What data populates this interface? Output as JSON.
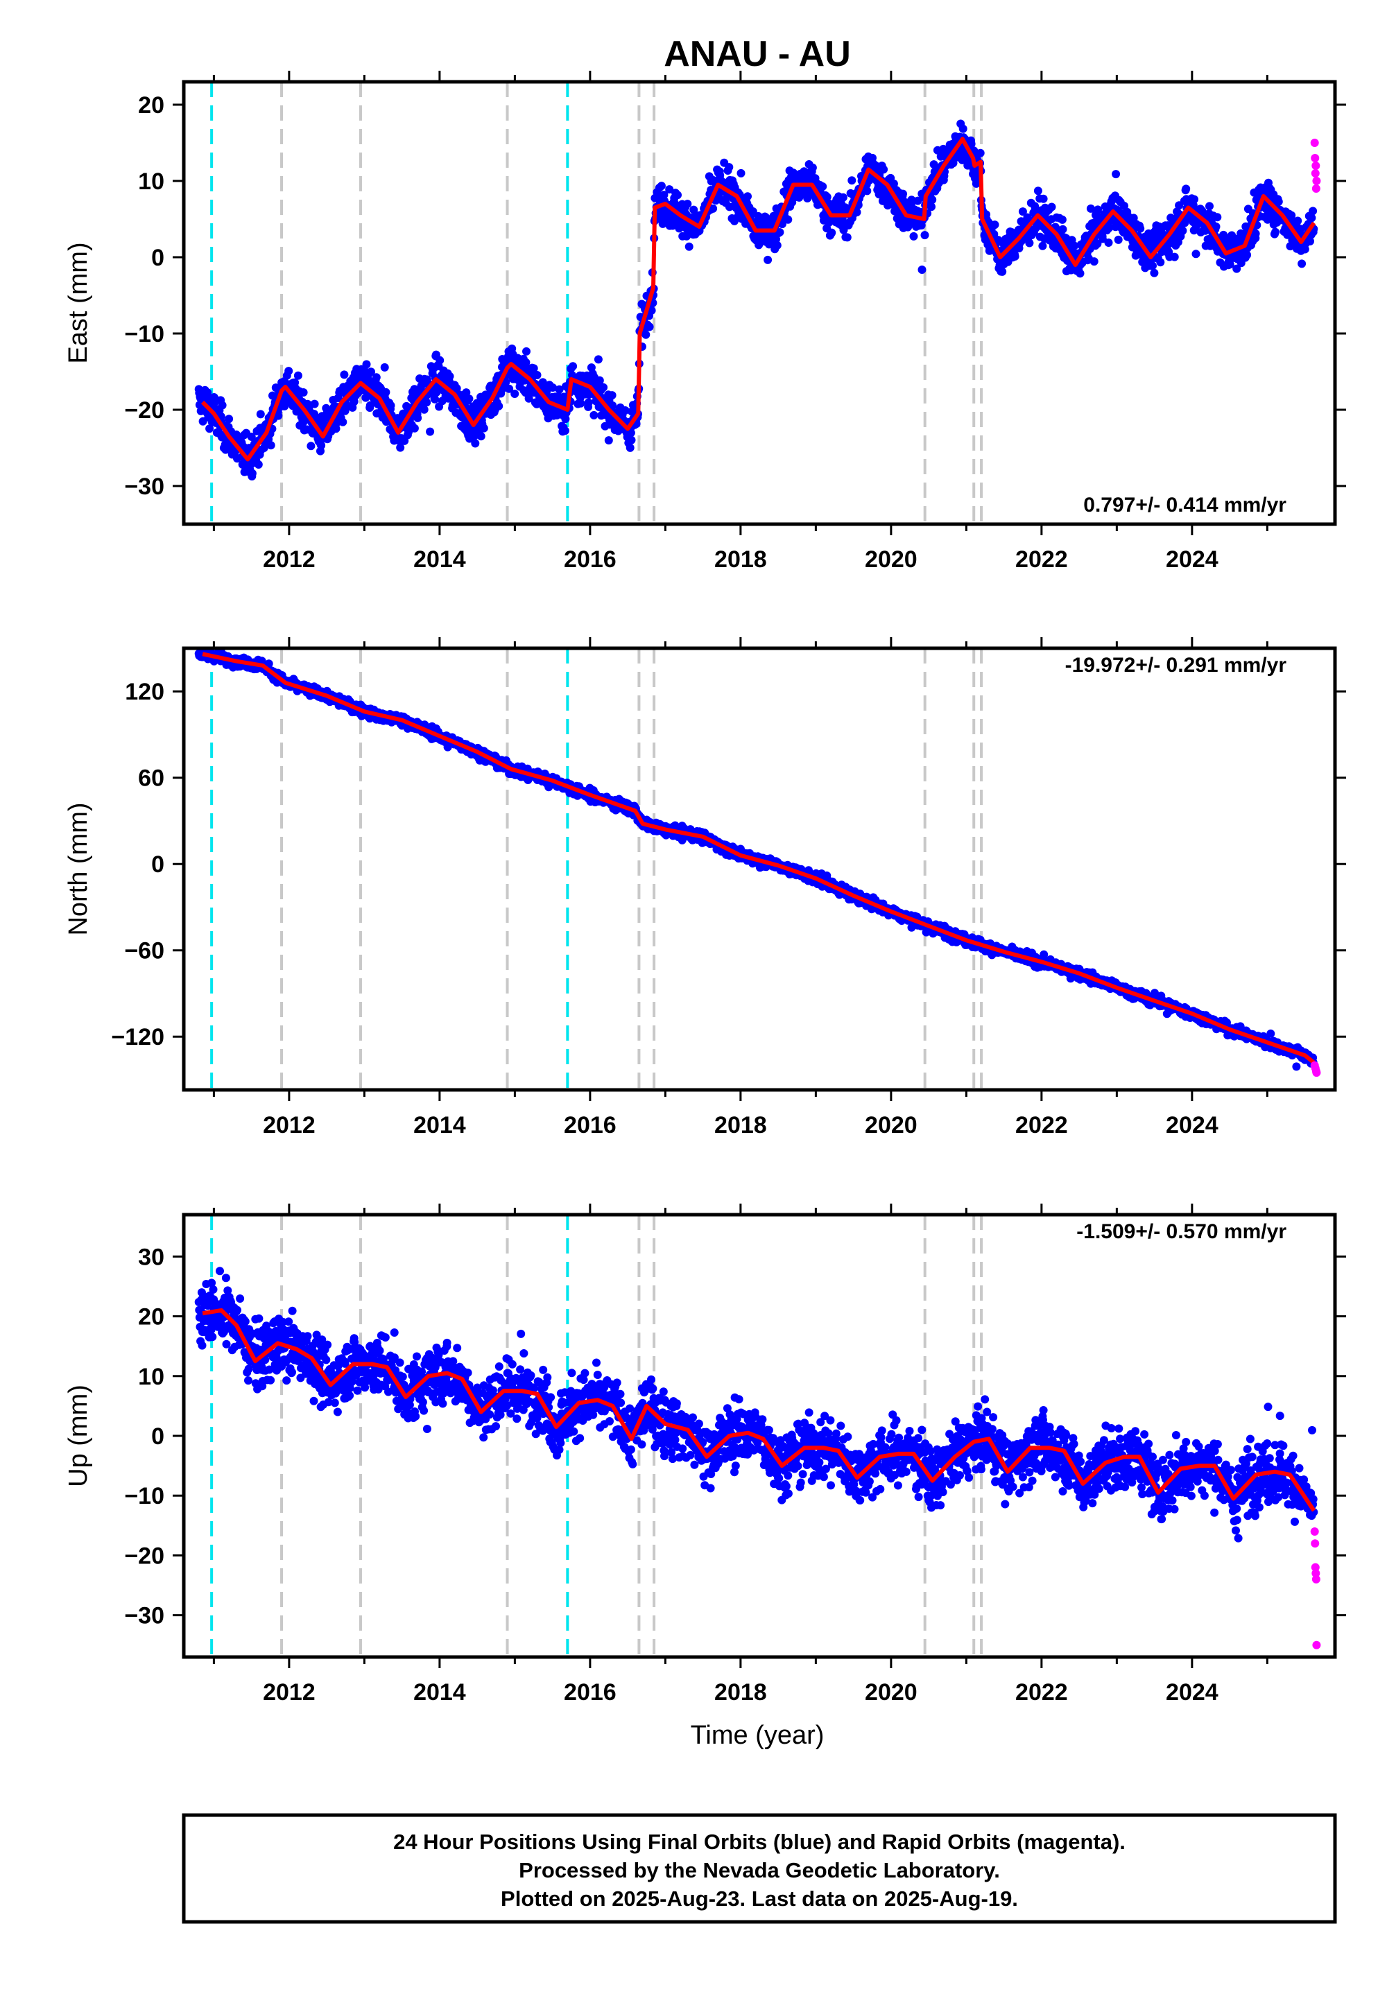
{
  "title": "ANAU - AU",
  "xlabel": "Time (year)",
  "footer": {
    "line1": "24 Hour Positions Using Final Orbits (blue) and Rapid Orbits (magenta).",
    "line2": "Processed by the Nevada Geodetic Laboratory.",
    "line3": "Plotted on 2025-Aug-23. Last data on 2025-Aug-19."
  },
  "colors": {
    "final_orbits": "#0000ff",
    "rapid_orbits": "#ff00ff",
    "model": "#ff0000",
    "offset_equipment": "#c8c8c8",
    "offset_earthquake": "#00e5ee"
  },
  "chart_data": [
    {
      "type": "scatter",
      "id": "east",
      "ylabel": "East (mm)",
      "rate_label": "0.797+/- 0.414 mm/yr",
      "rate_position": "bottom-right",
      "xlim": [
        2010.6,
        2025.9
      ],
      "ylim": [
        -35,
        23
      ],
      "xticks": [
        "2012",
        "2014",
        "2016",
        "2018",
        "2020",
        "2022",
        "2024"
      ],
      "yticks": [
        "20",
        "10",
        "0",
        "−10",
        "−20",
        "−30"
      ],
      "ytick_values": [
        20,
        10,
        0,
        -10,
        -20,
        -30
      ],
      "offsets_equipment": [
        2011.9,
        2012.95,
        2014.9,
        2016.65,
        2016.85,
        2020.45,
        2021.1,
        2021.2
      ],
      "offsets_earthquake": [
        2010.97,
        2015.7
      ],
      "series": [
        {
          "role": "model",
          "x": [
            2010.85,
            2011.0,
            2011.2,
            2011.45,
            2011.7,
            2011.9,
            2011.95,
            2012.2,
            2012.45,
            2012.7,
            2012.95,
            2013.2,
            2013.45,
            2013.7,
            2013.95,
            2014.2,
            2014.45,
            2014.7,
            2014.9,
            2014.95,
            2015.2,
            2015.45,
            2015.7,
            2015.75,
            2016.0,
            2016.25,
            2016.5,
            2016.64,
            2016.66,
            2016.84,
            2016.86,
            2017.0,
            2017.2,
            2017.45,
            2017.7,
            2017.95,
            2018.2,
            2018.45,
            2018.7,
            2018.95,
            2019.2,
            2019.45,
            2019.7,
            2019.95,
            2020.2,
            2020.44,
            2020.46,
            2020.7,
            2020.95,
            2021.09,
            2021.11,
            2021.19,
            2021.21,
            2021.45,
            2021.7,
            2021.95,
            2022.2,
            2022.45,
            2022.7,
            2022.95,
            2023.2,
            2023.45,
            2023.7,
            2023.95,
            2024.2,
            2024.45,
            2024.7,
            2024.95,
            2025.2,
            2025.45,
            2025.62
          ],
          "y": [
            -19,
            -20.5,
            -23.5,
            -26.5,
            -23,
            -17.5,
            -17,
            -20,
            -23.5,
            -19,
            -16.5,
            -18.5,
            -23,
            -19,
            -16,
            -18,
            -22,
            -18.5,
            -14.5,
            -14,
            -16,
            -19,
            -20,
            -16,
            -17,
            -20,
            -22.5,
            -20.5,
            -10,
            -4,
            6.5,
            7,
            5.5,
            4,
            9.5,
            8,
            3.5,
            3.5,
            9.5,
            9.5,
            5.5,
            5.5,
            11.5,
            9.5,
            5.5,
            5,
            8,
            12,
            15.5,
            13,
            12,
            12.5,
            5,
            0,
            2.5,
            5.5,
            3,
            -1,
            3,
            6,
            3.5,
            0,
            3,
            6.5,
            4.5,
            0.5,
            1.5,
            8,
            5.5,
            2,
            4.5
          ]
        },
        {
          "role": "final",
          "label": "Final Orbits",
          "x_range": [
            2010.8,
            2025.62
          ],
          "spread_mm": 1.8
        },
        {
          "role": "rapid",
          "label": "Rapid Orbits",
          "x": [
            2025.63,
            2025.635,
            2025.64,
            2025.645,
            2025.65,
            2025.655
          ],
          "y": [
            15,
            13,
            11,
            12,
            9,
            10
          ]
        }
      ]
    },
    {
      "type": "scatter",
      "id": "north",
      "ylabel": "North (mm)",
      "rate_label": "-19.972+/- 0.291 mm/yr",
      "rate_position": "top-right",
      "xlim": [
        2010.6,
        2025.9
      ],
      "ylim": [
        -157,
        150
      ],
      "xticks": [
        "2012",
        "2014",
        "2016",
        "2018",
        "2020",
        "2022",
        "2024"
      ],
      "yticks": [
        "120",
        "60",
        "0",
        "−60",
        "−120"
      ],
      "ytick_values": [
        120,
        60,
        0,
        -60,
        -120
      ],
      "offsets_equipment": [
        2011.9,
        2012.95,
        2014.9,
        2016.65,
        2016.85,
        2020.45,
        2021.1,
        2021.2
      ],
      "offsets_earthquake": [
        2010.97,
        2015.7
      ],
      "series": [
        {
          "role": "model",
          "x": [
            2010.85,
            2011.3,
            2011.65,
            2011.95,
            2012.5,
            2013.0,
            2013.5,
            2014.0,
            2014.5,
            2014.95,
            2015.5,
            2016.0,
            2016.6,
            2016.7,
            2017.0,
            2017.5,
            2018.0,
            2018.5,
            2019.0,
            2019.5,
            2020.0,
            2020.5,
            2021.0,
            2021.5,
            2022.0,
            2022.5,
            2023.0,
            2023.5,
            2024.0,
            2024.5,
            2025.0,
            2025.5,
            2025.62
          ],
          "y": [
            146,
            141,
            138,
            126,
            117,
            106,
            100,
            89,
            78,
            66,
            58,
            48,
            37,
            28,
            24,
            19,
            6,
            -1,
            -10,
            -22,
            -33,
            -43,
            -53,
            -61,
            -68,
            -76,
            -86,
            -95,
            -104,
            -115,
            -124,
            -133,
            -138
          ]
        },
        {
          "role": "final",
          "label": "Final Orbits",
          "x_range": [
            2010.8,
            2025.62
          ],
          "spread_mm": 2.5
        },
        {
          "role": "rapid",
          "label": "Rapid Orbits",
          "x": [
            2025.63,
            2025.64,
            2025.65,
            2025.655
          ],
          "y": [
            -140,
            -142,
            -144,
            -145
          ]
        }
      ]
    },
    {
      "type": "scatter",
      "id": "up",
      "ylabel": "Up (mm)",
      "rate_label": "-1.509+/- 0.570 mm/yr",
      "rate_position": "top-right",
      "xlim": [
        2010.6,
        2025.9
      ],
      "ylim": [
        -37,
        37
      ],
      "xticks": [
        "2012",
        "2014",
        "2016",
        "2018",
        "2020",
        "2022",
        "2024"
      ],
      "yticks": [
        "30",
        "20",
        "10",
        "0",
        "−10",
        "−20",
        "−30"
      ],
      "ytick_values": [
        30,
        20,
        10,
        0,
        -10,
        -20,
        -30
      ],
      "offsets_equipment": [
        2011.9,
        2012.95,
        2014.9,
        2016.65,
        2016.85,
        2020.45,
        2021.1,
        2021.2
      ],
      "offsets_earthquake": [
        2010.97,
        2015.7
      ],
      "series": [
        {
          "role": "model",
          "x": [
            2010.85,
            2011.1,
            2011.3,
            2011.55,
            2011.85,
            2012.1,
            2012.3,
            2012.55,
            2012.85,
            2013.1,
            2013.3,
            2013.55,
            2013.85,
            2014.1,
            2014.3,
            2014.55,
            2014.85,
            2015.1,
            2015.3,
            2015.55,
            2015.85,
            2016.1,
            2016.3,
            2016.55,
            2016.75,
            2017.0,
            2017.3,
            2017.55,
            2017.85,
            2018.1,
            2018.3,
            2018.55,
            2018.85,
            2019.1,
            2019.3,
            2019.55,
            2019.85,
            2020.1,
            2020.3,
            2020.55,
            2020.85,
            2021.1,
            2021.3,
            2021.55,
            2021.85,
            2022.1,
            2022.3,
            2022.55,
            2022.85,
            2023.1,
            2023.3,
            2023.55,
            2023.85,
            2024.1,
            2024.3,
            2024.55,
            2024.85,
            2025.1,
            2025.3,
            2025.62
          ],
          "y": [
            20.5,
            21,
            18.5,
            12.5,
            15.5,
            14.5,
            13,
            8.5,
            12,
            12,
            11.5,
            6.5,
            10,
            10.5,
            9.5,
            4,
            7.5,
            7.5,
            7,
            1.5,
            5.5,
            6,
            5,
            -0.5,
            5,
            2,
            1,
            -3.5,
            0,
            0.5,
            -0.5,
            -5,
            -2,
            -2,
            -2.5,
            -7,
            -3.5,
            -3,
            -3,
            -7.5,
            -3.5,
            -1,
            -0.5,
            -6,
            -2,
            -2,
            -2.5,
            -8,
            -4.5,
            -3.5,
            -3.5,
            -9.5,
            -5.5,
            -5,
            -5,
            -10.5,
            -6.5,
            -6,
            -6.5,
            -12.5
          ]
        },
        {
          "role": "final",
          "label": "Final Orbits",
          "x_range": [
            2010.8,
            2025.62
          ],
          "spread_mm": 3.5
        },
        {
          "role": "rapid",
          "label": "Rapid Orbits",
          "x": [
            2025.63,
            2025.635,
            2025.64,
            2025.645,
            2025.65,
            2025.655
          ],
          "y": [
            -16,
            -18,
            -22,
            -23,
            -24,
            -35
          ]
        }
      ]
    }
  ]
}
